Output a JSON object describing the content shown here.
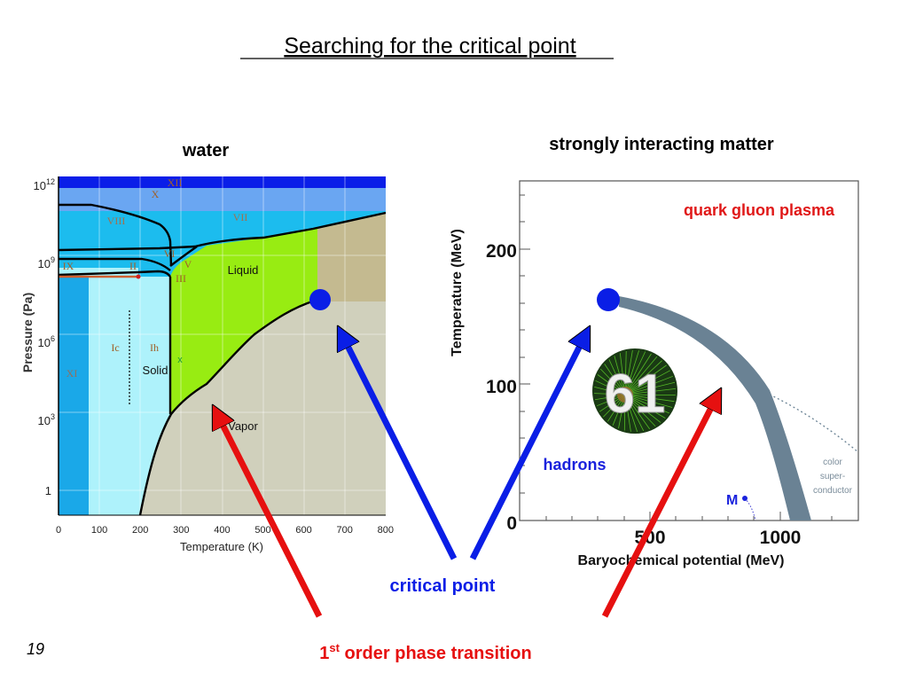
{
  "slide": {
    "title": "Searching for the critical point",
    "page_number": "19",
    "critical_point_label": "critical point",
    "transition_label_main": "1",
    "transition_label_sup": "st",
    "transition_label_rest": " order phase transition",
    "colors": {
      "critical_point": "#0a1ee6",
      "transition": "#e61010",
      "qgp": "#e01818",
      "hadrons": "#1a22dd",
      "band": "#6a8294"
    }
  },
  "water": {
    "heading": "water",
    "xlabel": "Temperature (K)",
    "ylabel": "Pressure (Pa)",
    "x_ticks": [
      "0",
      "100",
      "200",
      "300",
      "400",
      "500",
      "600",
      "700",
      "800"
    ],
    "y_ticks": [
      {
        "base": "10",
        "exp": "12"
      },
      {
        "base": "10",
        "exp": "9"
      },
      {
        "base": "10",
        "exp": "6"
      },
      {
        "base": "10",
        "exp": "3"
      },
      {
        "base": "1",
        "exp": ""
      }
    ],
    "phases": [
      "XII",
      "X",
      "VIII",
      "VII",
      "VI",
      "V",
      "III",
      "IX",
      "II",
      "Ic",
      "Ih",
      "XI",
      "Solid",
      "Liquid",
      "Vapor",
      "x"
    ],
    "colors": {
      "xii": "#0a1ee8",
      "x": "#6aa6f2",
      "ice_high": "#1cbcee",
      "ice_low": "#aef2fb",
      "xi": "#1aa8e8",
      "liquid": "#98ec12",
      "vapor": "#d0d0bc",
      "supercritical": "#c4ba90"
    }
  },
  "qcd": {
    "heading": "strongly interacting matter",
    "xlabel": "Baryochemical potential (MeV)",
    "ylabel": "Temperature (MeV)",
    "x_ticks": [
      "500",
      "1000"
    ],
    "y_ticks": [
      "200",
      "100",
      "0"
    ],
    "qgp_label": "quark gluon plasma",
    "hadrons_label": "hadrons",
    "csc_label": [
      "color",
      "super-",
      "conductor"
    ],
    "m_label": "M",
    "badge_text": "61"
  }
}
